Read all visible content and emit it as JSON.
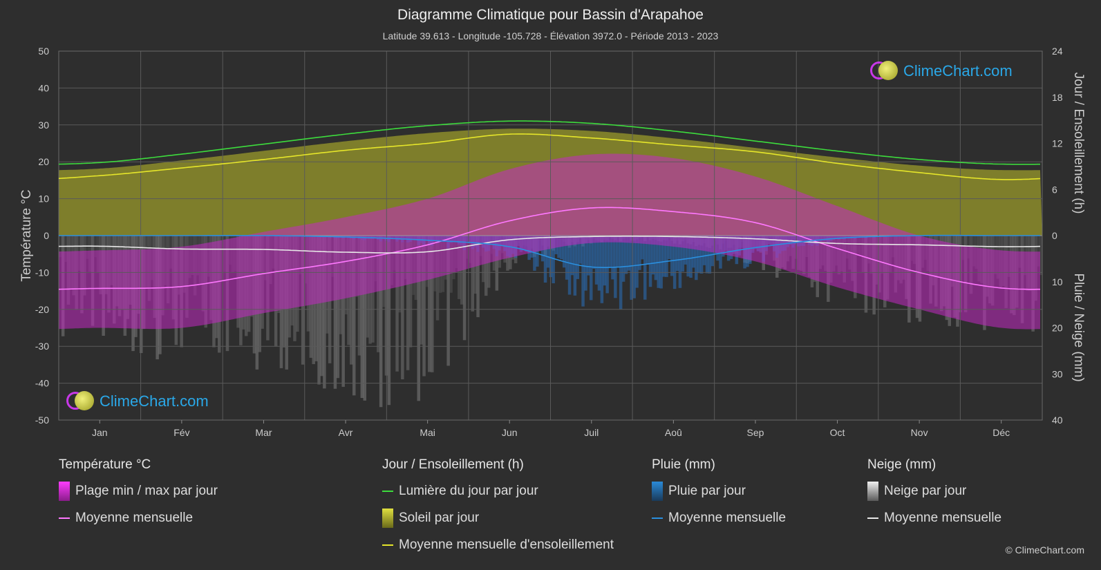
{
  "header": {
    "title": "Diagramme Climatique pour Bassin d'Arapahoe",
    "subtitle": "Latitude 39.613 - Longitude -105.728 - Élévation 3972.0 - Période 2013 - 2023"
  },
  "brand": {
    "logo_text": "ClimeChart.com",
    "copyright": "© ClimeChart.com"
  },
  "colors": {
    "background": "#2e2e2e",
    "daylight": "#3ddc3d",
    "sunshine_fill": "#b8b832",
    "sunshine_line": "#e6e62a",
    "temp_range": "#d42ad4",
    "temp_line": "#ff78ff",
    "rain": "#2a8ad8",
    "rain_line": "#2a90e0",
    "snow": "#9a9a9a",
    "snow_line": "#e8e8e8"
  },
  "chart_data": {
    "type": "area",
    "months": [
      "Jan",
      "Fév",
      "Mar",
      "Avr",
      "Mai",
      "Jun",
      "Juil",
      "Aoû",
      "Sep",
      "Oct",
      "Nov",
      "Déc"
    ],
    "axes": {
      "left": {
        "title": "Température °C",
        "range": [
          -50,
          50
        ],
        "ticks": [
          50,
          40,
          30,
          20,
          10,
          0,
          -10,
          -20,
          -30,
          -40,
          -50
        ]
      },
      "right_top": {
        "title": "Jour / Ensoleillement (h)",
        "range": [
          0,
          24
        ],
        "ticks": [
          24,
          18,
          12,
          6,
          0
        ]
      },
      "right_bottom": {
        "title": "Pluie / Neige (mm)",
        "range": [
          0,
          40
        ],
        "ticks": [
          0,
          10,
          20,
          30,
          40
        ]
      }
    },
    "grid": true,
    "series": [
      {
        "name": "Lumière du jour par jour",
        "unit": "h",
        "values": [
          9.5,
          10.6,
          11.9,
          13.2,
          14.3,
          14.9,
          14.6,
          13.6,
          12.3,
          11.0,
          9.9,
          9.3
        ]
      },
      {
        "name": "Moyenne mensuelle d'ensoleillement",
        "unit": "h",
        "values": [
          7.8,
          8.8,
          9.9,
          11.1,
          12.0,
          13.2,
          12.7,
          11.8,
          10.9,
          9.4,
          8.2,
          7.3
        ]
      },
      {
        "name": "Moyenne mensuelle (température)",
        "unit": "°C",
        "values": [
          -14.3,
          -13.8,
          -10.3,
          -7.0,
          -2.5,
          4.0,
          7.5,
          6.5,
          3.5,
          -3.5,
          -10.0,
          -14.2
        ]
      },
      {
        "name": "Moyenne mensuelle (pluie)",
        "unit": "mm",
        "values": [
          0.0,
          0.0,
          0.0,
          0.3,
          1.0,
          2.4,
          6.8,
          5.4,
          2.6,
          0.6,
          0.0,
          0.0
        ]
      },
      {
        "name": "Moyenne mensuelle (neige)",
        "unit": "mm",
        "values": [
          2.3,
          2.9,
          3.0,
          3.6,
          3.5,
          0.9,
          0.2,
          0.2,
          0.7,
          1.7,
          2.0,
          2.4
        ]
      },
      {
        "name": "Plage min / max par jour (max)",
        "unit": "°C",
        "values": [
          -4,
          -3,
          1,
          5,
          10,
          18,
          22,
          21,
          16,
          8,
          0,
          -4
        ]
      },
      {
        "name": "Plage min / max par jour (min)",
        "unit": "°C",
        "values": [
          -25,
          -25,
          -21,
          -17,
          -12,
          -6,
          -2,
          -3,
          -7,
          -14,
          -20,
          -25
        ]
      }
    ]
  },
  "legend": {
    "groups": [
      {
        "title": "Température °C",
        "items": [
          {
            "label": "Plage min / max par jour",
            "kind": "box",
            "color": "#d42ad4"
          },
          {
            "label": "Moyenne mensuelle",
            "kind": "line",
            "color": "#ff78ff"
          }
        ]
      },
      {
        "title": "Jour / Ensoleillement (h)",
        "items": [
          {
            "label": "Lumière du jour par jour",
            "kind": "line",
            "color": "#3ddc3d"
          },
          {
            "label": "Soleil par jour",
            "kind": "box",
            "color": "#c8c83a"
          },
          {
            "label": "Moyenne mensuelle d'ensoleillement",
            "kind": "line",
            "color": "#e6e62a"
          }
        ]
      },
      {
        "title": "Pluie (mm)",
        "items": [
          {
            "label": "Pluie par jour",
            "kind": "box",
            "color": "#2a8ad8"
          },
          {
            "label": "Moyenne mensuelle",
            "kind": "line",
            "color": "#2a90e0"
          }
        ]
      },
      {
        "title": "Neige (mm)",
        "items": [
          {
            "label": "Neige par jour",
            "kind": "box",
            "color": "#dddddd"
          },
          {
            "label": "Moyenne mensuelle",
            "kind": "line",
            "color": "#e8e8e8"
          }
        ]
      }
    ]
  }
}
